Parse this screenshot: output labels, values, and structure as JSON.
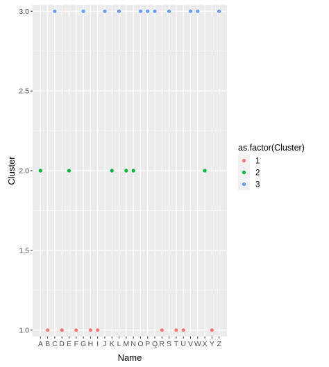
{
  "chart_data": {
    "type": "scatter",
    "title": "",
    "xlabel": "Name",
    "ylabel": "Cluster",
    "categories": [
      "A",
      "B",
      "C",
      "D",
      "E",
      "F",
      "G",
      "H",
      "I",
      "J",
      "K",
      "L",
      "M",
      "N",
      "O",
      "P",
      "Q",
      "R",
      "S",
      "T",
      "U",
      "V",
      "W",
      "X",
      "Y",
      "Z"
    ],
    "ylim": [
      0.96,
      3.04
    ],
    "yticks": [
      1.0,
      1.5,
      2.0,
      2.5,
      3.0
    ],
    "ytick_labels": [
      "1.0",
      "1.5",
      "2.0",
      "2.5",
      "3.0"
    ],
    "grid": true,
    "legend": {
      "title": "as.factor(Cluster)",
      "placement": "right",
      "entries": [
        {
          "label": "1",
          "color": "#F8766D"
        },
        {
          "label": "2",
          "color": "#00BA38"
        },
        {
          "label": "3",
          "color": "#619CFF"
        }
      ]
    },
    "points": [
      {
        "x": "A",
        "y": 2
      },
      {
        "x": "B",
        "y": 1
      },
      {
        "x": "C",
        "y": 3
      },
      {
        "x": "D",
        "y": 1
      },
      {
        "x": "E",
        "y": 2
      },
      {
        "x": "F",
        "y": 1
      },
      {
        "x": "G",
        "y": 3
      },
      {
        "x": "H",
        "y": 1
      },
      {
        "x": "I",
        "y": 1
      },
      {
        "x": "J",
        "y": 3
      },
      {
        "x": "K",
        "y": 2
      },
      {
        "x": "L",
        "y": 3
      },
      {
        "x": "M",
        "y": 2
      },
      {
        "x": "N",
        "y": 2
      },
      {
        "x": "O",
        "y": 3
      },
      {
        "x": "P",
        "y": 3
      },
      {
        "x": "Q",
        "y": 3
      },
      {
        "x": "R",
        "y": 1
      },
      {
        "x": "S",
        "y": 3
      },
      {
        "x": "T",
        "y": 1
      },
      {
        "x": "U",
        "y": 1
      },
      {
        "x": "V",
        "y": 3
      },
      {
        "x": "W",
        "y": 3
      },
      {
        "x": "X",
        "y": 2
      },
      {
        "x": "Y",
        "y": 1
      },
      {
        "x": "Z",
        "y": 3
      }
    ]
  },
  "colors": {
    "panel_background": "#EBEBEB",
    "grid_major": "#FFFFFF",
    "legend_key_background": "#F2F2F2"
  }
}
